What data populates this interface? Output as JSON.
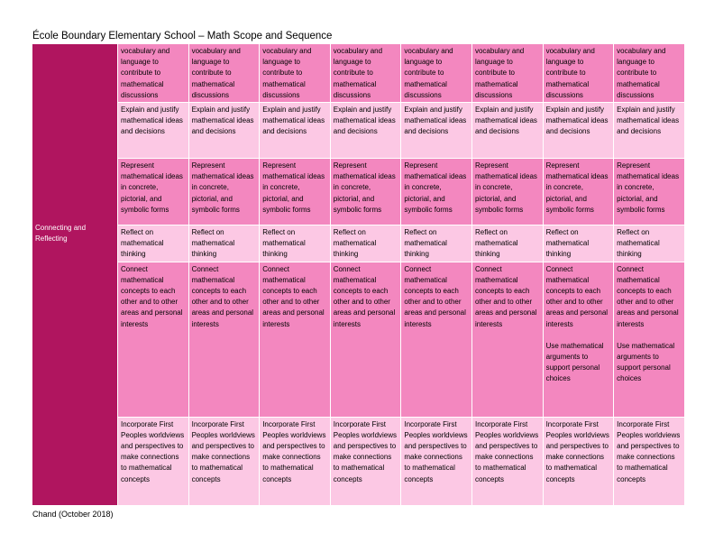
{
  "page_title": "École Boundary Elementary School – Math Scope and Sequence",
  "footer": "Chand (October 2018)",
  "category": "Connecting and\nReflecting",
  "rows": [
    {
      "shade": "dark",
      "cells": [
        "vocabulary and language to contribute to mathematical discussions",
        "vocabulary and language to contribute to mathematical discussions",
        "vocabulary and language to contribute to mathematical discussions",
        "vocabulary and language to contribute to mathematical discussions",
        "vocabulary and language to contribute to mathematical discussions",
        "vocabulary and language to contribute to mathematical discussions",
        "vocabulary and language to contribute to mathematical discussions",
        "vocabulary and language to contribute to mathematical discussions"
      ]
    },
    {
      "shade": "light",
      "cells": [
        "Explain and justify mathematical ideas and decisions",
        "Explain and justify mathematical ideas and decisions",
        "Explain and justify mathematical ideas and decisions",
        "Explain and justify mathematical ideas and decisions",
        "Explain and justify mathematical ideas and decisions",
        "Explain and justify mathematical ideas and decisions",
        "Explain and justify mathematical ideas and decisions",
        "Explain and justify mathematical ideas and decisions"
      ]
    },
    {
      "shade": "dark",
      "cells": [
        "Represent mathematical ideas in concrete, pictorial, and symbolic forms",
        "Represent mathematical ideas in concrete, pictorial, and symbolic forms",
        "Represent mathematical ideas in concrete, pictorial, and symbolic forms",
        "Represent mathematical ideas in concrete, pictorial, and symbolic forms",
        "Represent mathematical ideas in concrete, pictorial, and symbolic forms",
        "Represent mathematical ideas in concrete, pictorial, and symbolic forms",
        "Represent mathematical ideas in concrete, pictorial, and symbolic forms",
        "Represent mathematical ideas in concrete, pictorial, and symbolic forms"
      ]
    },
    {
      "shade": "light",
      "cells": [
        "Reflect on mathematical thinking",
        "Reflect on mathematical thinking",
        "Reflect on mathematical thinking",
        "Reflect on mathematical thinking",
        "Reflect on mathematical thinking",
        "Reflect on mathematical thinking",
        "Reflect on mathematical thinking",
        "Reflect on mathematical thinking"
      ]
    },
    {
      "shade": "dark",
      "cells": [
        "Connect mathematical concepts to each other and to other areas and personal interests",
        "Connect mathematical concepts to each other and to other areas and personal interests",
        "Connect mathematical concepts to each other and to other areas and personal interests",
        "Connect mathematical concepts to each other and to other areas and personal interests",
        "Connect mathematical concepts to each other and to other areas and personal interests",
        "Connect mathematical concepts to each other and to other areas and personal interests",
        "Connect mathematical concepts to each other and to other areas and personal interests",
        "Connect mathematical concepts to each other and to other areas and personal interests"
      ],
      "extras": [
        "",
        "",
        "",
        "",
        "",
        "",
        "Use mathematical arguments to support personal choices",
        "Use mathematical arguments to support personal choices"
      ]
    },
    {
      "shade": "light",
      "cells": [
        "Incorporate First Peoples worldviews and perspectives to make connections to mathematical concepts",
        "Incorporate First Peoples worldviews and perspectives to make connections to mathematical concepts",
        "Incorporate First Peoples worldviews and perspectives to make connections to mathematical concepts",
        "Incorporate First Peoples worldviews and perspectives to make connections to mathematical concepts",
        "Incorporate First Peoples worldviews and perspectives to make connections to mathematical concepts",
        "Incorporate First Peoples worldviews and perspectives to make connections to mathematical concepts",
        "Incorporate First Peoples worldviews and perspectives to make connections to mathematical concepts",
        "Incorporate First Peoples worldviews and perspectives to make connections to mathematical concepts"
      ]
    }
  ]
}
